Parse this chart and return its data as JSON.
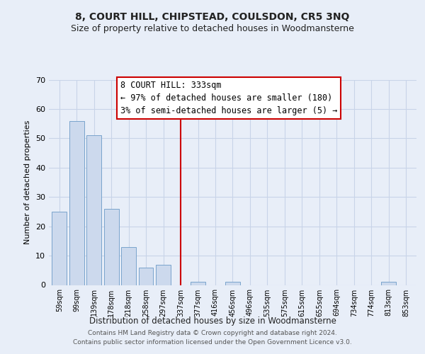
{
  "title": "8, COURT HILL, CHIPSTEAD, COULSDON, CR5 3NQ",
  "subtitle": "Size of property relative to detached houses in Woodmansterne",
  "xlabel": "Distribution of detached houses by size in Woodmansterne",
  "ylabel": "Number of detached properties",
  "bar_labels": [
    "59sqm",
    "99sqm",
    "139sqm",
    "178sqm",
    "218sqm",
    "258sqm",
    "297sqm",
    "337sqm",
    "377sqm",
    "416sqm",
    "456sqm",
    "496sqm",
    "535sqm",
    "575sqm",
    "615sqm",
    "655sqm",
    "694sqm",
    "734sqm",
    "774sqm",
    "813sqm",
    "853sqm"
  ],
  "bar_values": [
    25,
    56,
    51,
    26,
    13,
    6,
    7,
    0,
    1,
    0,
    1,
    0,
    0,
    0,
    0,
    0,
    0,
    0,
    0,
    1,
    0
  ],
  "bar_color": "#ccd9ed",
  "bar_edge_color": "#7aa4cc",
  "vline_x_index": 7,
  "vline_color": "#cc0000",
  "ylim": [
    0,
    70
  ],
  "yticks": [
    0,
    10,
    20,
    30,
    40,
    50,
    60,
    70
  ],
  "annotation_title": "8 COURT HILL: 333sqm",
  "annotation_line1": "← 97% of detached houses are smaller (180)",
  "annotation_line2": "3% of semi-detached houses are larger (5) →",
  "annotation_box_color": "#ffffff",
  "annotation_box_edge": "#cc0000",
  "footer_line1": "Contains HM Land Registry data © Crown copyright and database right 2024.",
  "footer_line2": "Contains public sector information licensed under the Open Government Licence v3.0.",
  "bg_color": "#e8eef8",
  "plot_bg_color": "#e8eef8",
  "grid_color": "#c8d4e8",
  "title_fontsize": 10,
  "subtitle_fontsize": 9
}
